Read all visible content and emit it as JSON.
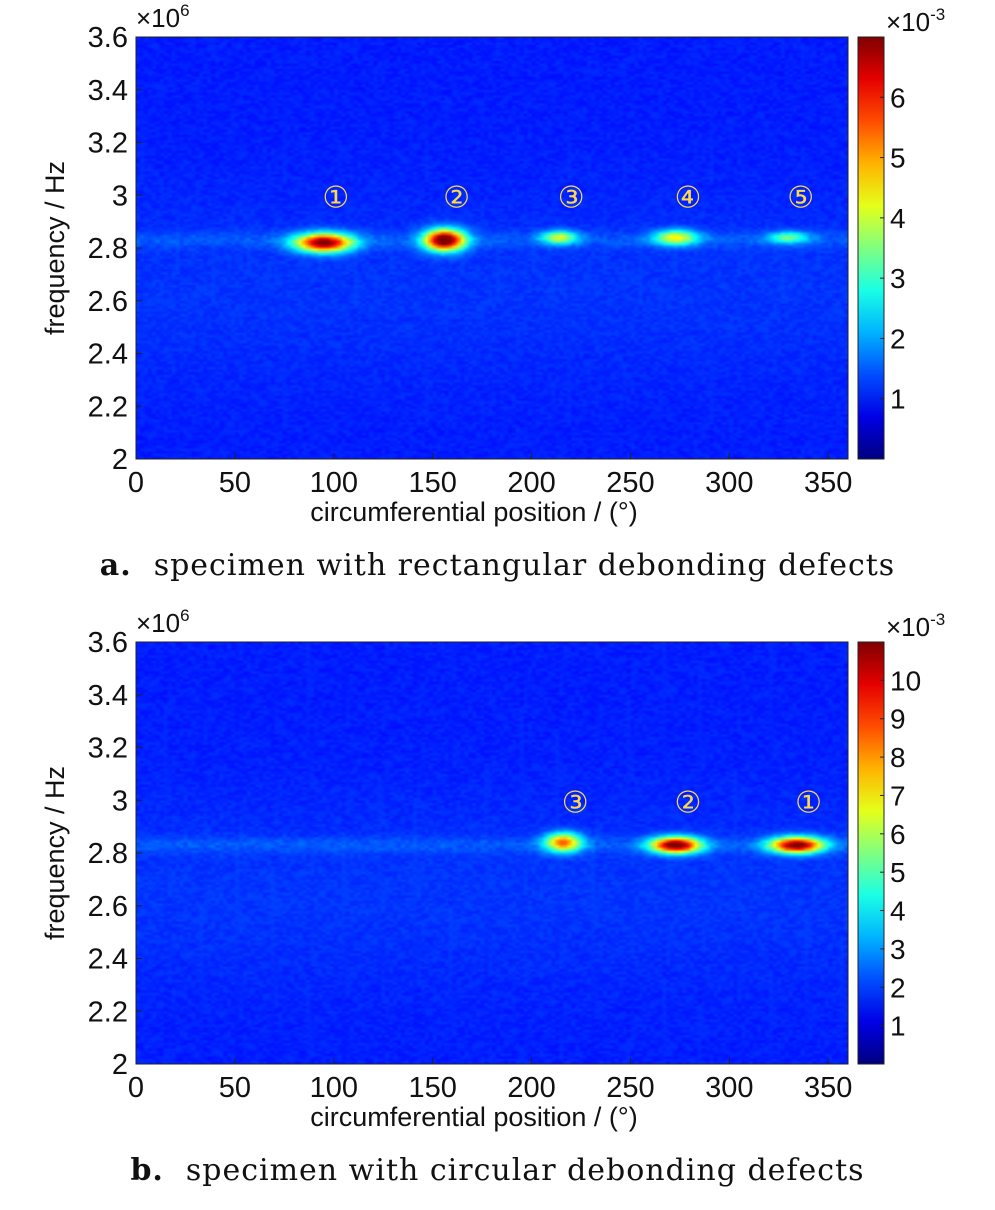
{
  "chart_data": [
    {
      "type": "heatmap",
      "panel_label": "a.",
      "caption": "specimen with rectangular debonding defects",
      "xlabel": "circumferential position / (°)",
      "ylabel": "frequency / Hz",
      "xlim": [
        0,
        360
      ],
      "ylim": [
        2.0,
        3.6
      ],
      "y_exponent_label": "×10",
      "y_exponent": "6",
      "x_ticks": [
        "0",
        "50",
        "100",
        "150",
        "200",
        "250",
        "300",
        "350"
      ],
      "x_tick_values": [
        0,
        50,
        100,
        150,
        200,
        250,
        300,
        350
      ],
      "y_ticks": [
        "2",
        "2.2",
        "2.4",
        "2.6",
        "2.8",
        "3",
        "3.2",
        "3.4",
        "3.6"
      ],
      "y_tick_values": [
        2.0,
        2.2,
        2.4,
        2.6,
        2.8,
        3.0,
        3.2,
        3.4,
        3.6
      ],
      "colorbar": {
        "exponent_label": "×10",
        "exponent": "-3",
        "max": 7,
        "ticks": [
          "1",
          "2",
          "3",
          "4",
          "5",
          "6"
        ],
        "tick_values": [
          1,
          2,
          3,
          4,
          5,
          6
        ]
      },
      "hotspots": [
        {
          "label": "①",
          "x": 95,
          "y": 2.82,
          "peak": 6.3,
          "width": 14,
          "height": 0.035
        },
        {
          "label": "②",
          "x": 156,
          "y": 2.83,
          "peak": 6.9,
          "width": 10,
          "height": 0.04
        },
        {
          "label": "③",
          "x": 214,
          "y": 2.84,
          "peak": 3.0,
          "width": 9,
          "height": 0.025
        },
        {
          "label": "④",
          "x": 273,
          "y": 2.84,
          "peak": 3.3,
          "width": 11,
          "height": 0.028
        },
        {
          "label": "⑤",
          "x": 330,
          "y": 2.84,
          "peak": 2.2,
          "width": 10,
          "height": 0.022
        }
      ],
      "label_y": 3.0,
      "background_level": 0.5
    },
    {
      "type": "heatmap",
      "panel_label": "b.",
      "caption": "specimen with circular debonding defects",
      "xlabel": "circumferential position / (°)",
      "ylabel": "frequency / Hz",
      "xlim": [
        0,
        360
      ],
      "ylim": [
        2.0,
        3.6
      ],
      "y_exponent_label": "×10",
      "y_exponent": "6",
      "x_ticks": [
        "0",
        "50",
        "100",
        "150",
        "200",
        "250",
        "300",
        "350"
      ],
      "x_tick_values": [
        0,
        50,
        100,
        150,
        200,
        250,
        300,
        350
      ],
      "y_ticks": [
        "2",
        "2.2",
        "2.4",
        "2.6",
        "2.8",
        "3",
        "3.2",
        "3.4",
        "3.6"
      ],
      "y_tick_values": [
        2.0,
        2.2,
        2.4,
        2.6,
        2.8,
        3.0,
        3.2,
        3.4,
        3.6
      ],
      "colorbar": {
        "exponent_label": "×10",
        "exponent": "-3",
        "max": 11,
        "ticks": [
          "1",
          "2",
          "3",
          "4",
          "5",
          "6",
          "7",
          "8",
          "9",
          "10"
        ],
        "tick_values": [
          1,
          2,
          3,
          4,
          5,
          6,
          7,
          8,
          9,
          10
        ]
      },
      "hotspots": [
        {
          "label": "③",
          "x": 216,
          "y": 2.84,
          "peak": 7.0,
          "width": 9,
          "height": 0.035
        },
        {
          "label": "②",
          "x": 273,
          "y": 2.83,
          "peak": 10.5,
          "width": 12,
          "height": 0.03
        },
        {
          "label": "①",
          "x": 334,
          "y": 2.83,
          "peak": 10.0,
          "width": 13,
          "height": 0.03
        }
      ],
      "label_y": 3.0,
      "background_level": 0.8
    }
  ]
}
